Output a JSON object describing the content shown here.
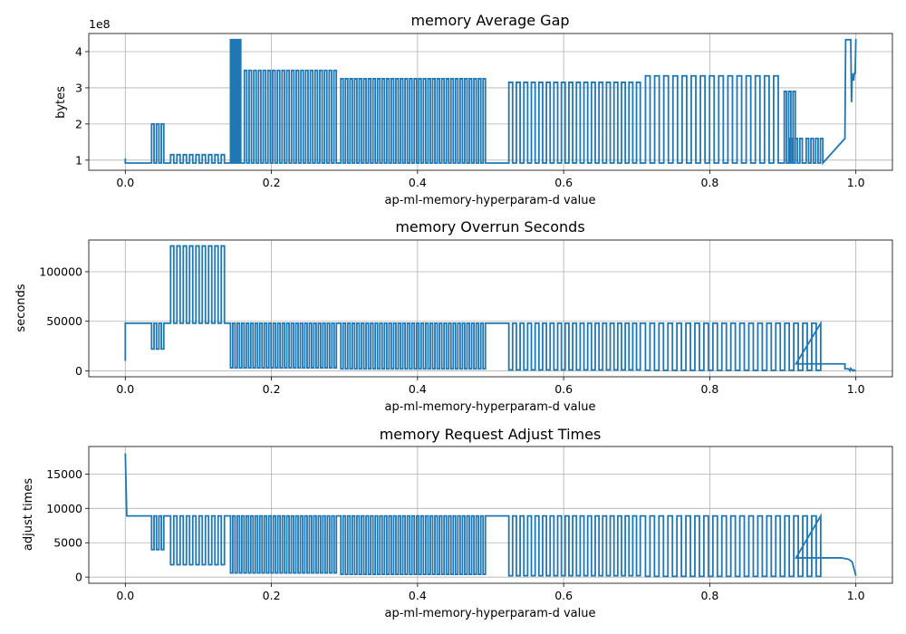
{
  "chart_data": [
    {
      "type": "line",
      "title": "memory Average Gap",
      "xlabel": "ap-ml-memory-hyperparam-d value",
      "ylabel": "bytes",
      "offset_text": "1e8",
      "xlim": [
        -0.05,
        1.05
      ],
      "ylim": [
        0.72,
        4.5
      ],
      "xticks": [
        0.0,
        0.2,
        0.4,
        0.6,
        0.8,
        1.0
      ],
      "xtick_labels": [
        "0.0",
        "0.2",
        "0.4",
        "0.6",
        "0.8",
        "1.0"
      ],
      "yticks": [
        1,
        2,
        3,
        4
      ],
      "ytick_labels": [
        "1",
        "2",
        "3",
        "4"
      ],
      "grid": true,
      "color": "#1f77b4",
      "baseline": 0.92,
      "start": [
        [
          0.0,
          1.05
        ],
        [
          0.0,
          0.92
        ]
      ],
      "end": [
        [
          0.985,
          1.6
        ],
        [
          0.986,
          4.33
        ],
        [
          0.993,
          4.33
        ],
        [
          0.994,
          2.6
        ],
        [
          0.995,
          3.4
        ],
        [
          0.997,
          3.2
        ],
        [
          0.998,
          3.4
        ],
        [
          0.999,
          3.4
        ],
        [
          1.0,
          4.35
        ]
      ],
      "segments": [
        {
          "x0": 0.036,
          "x1": 0.056,
          "h": 2.0,
          "n": 3
        },
        {
          "x0": 0.062,
          "x1": 0.14,
          "h": 1.15,
          "n": 9
        },
        {
          "x0": 0.144,
          "x1": 0.16,
          "h": 4.33,
          "n": 4
        },
        {
          "x0": 0.163,
          "x1": 0.292,
          "h": 3.48,
          "n": 20
        },
        {
          "x0": 0.295,
          "x1": 0.496,
          "h": 3.25,
          "n": 32
        },
        {
          "x0": 0.525,
          "x1": 0.71,
          "h": 3.15,
          "n": 18
        },
        {
          "x0": 0.712,
          "x1": 0.9,
          "h": 3.33,
          "n": 15
        },
        {
          "x0": 0.902,
          "x1": 0.92,
          "h": 2.9,
          "n": 3
        },
        {
          "x0": 0.91,
          "x1": 0.93,
          "h": 1.6,
          "n": 3
        },
        {
          "x0": 0.932,
          "x1": 0.958,
          "h": 1.6,
          "n": 4
        }
      ]
    },
    {
      "type": "line",
      "title": "memory Overrun Seconds",
      "xlabel": "ap-ml-memory-hyperparam-d value",
      "ylabel": "seconds",
      "xlim": [
        -0.05,
        1.05
      ],
      "ylim": [
        -6000,
        132000
      ],
      "xticks": [
        0.0,
        0.2,
        0.4,
        0.6,
        0.8,
        1.0
      ],
      "xtick_labels": [
        "0.0",
        "0.2",
        "0.4",
        "0.6",
        "0.8",
        "1.0"
      ],
      "yticks": [
        0,
        50000,
        100000
      ],
      "ytick_labels": [
        "0",
        "50000",
        "100000"
      ],
      "grid": true,
      "color": "#1f77b4",
      "baseline": 48000,
      "start": [
        [
          0.0,
          10000
        ],
        [
          0.0,
          48000
        ]
      ],
      "end": [
        [
          0.918,
          7000
        ],
        [
          0.985,
          7000
        ],
        [
          0.985,
          2000
        ],
        [
          0.99,
          2000
        ],
        [
          0.992,
          0
        ],
        [
          0.993,
          2500
        ],
        [
          0.996,
          0
        ],
        [
          0.997,
          1000
        ],
        [
          1.0,
          0
        ]
      ],
      "segments": [
        {
          "x0": 0.036,
          "x1": 0.056,
          "h": 22000,
          "n": 3
        },
        {
          "x0": 0.062,
          "x1": 0.14,
          "h": 126000,
          "n": 9
        },
        {
          "x0": 0.144,
          "x1": 0.292,
          "h": 3000,
          "n": 24
        },
        {
          "x0": 0.295,
          "x1": 0.496,
          "h": 2000,
          "n": 32
        },
        {
          "x0": 0.525,
          "x1": 0.71,
          "h": 1000,
          "n": 18
        },
        {
          "x0": 0.712,
          "x1": 0.958,
          "h": 500,
          "n": 20
        }
      ]
    },
    {
      "type": "line",
      "title": "memory Request Adjust Times",
      "xlabel": "ap-ml-memory-hyperparam-d value",
      "ylabel": "adjust times",
      "xlim": [
        -0.05,
        1.05
      ],
      "ylim": [
        -900,
        19000
      ],
      "xticks": [
        0.0,
        0.2,
        0.4,
        0.6,
        0.8,
        1.0
      ],
      "xtick_labels": [
        "0.0",
        "0.2",
        "0.4",
        "0.6",
        "0.8",
        "1.0"
      ],
      "yticks": [
        0,
        5000,
        10000,
        15000
      ],
      "ytick_labels": [
        "0",
        "5000",
        "10000",
        "15000"
      ],
      "grid": true,
      "color": "#1f77b4",
      "baseline": 8900,
      "start": [
        [
          0.0,
          18000
        ],
        [
          0.002,
          8900
        ]
      ],
      "end": [
        [
          0.918,
          2800
        ],
        [
          0.98,
          2800
        ],
        [
          0.99,
          2600
        ],
        [
          0.995,
          2200
        ],
        [
          1.0,
          200
        ]
      ],
      "segments": [
        {
          "x0": 0.036,
          "x1": 0.056,
          "h": 4000,
          "n": 3
        },
        {
          "x0": 0.062,
          "x1": 0.14,
          "h": 1800,
          "n": 9
        },
        {
          "x0": 0.144,
          "x1": 0.292,
          "h": 600,
          "n": 24
        },
        {
          "x0": 0.295,
          "x1": 0.496,
          "h": 400,
          "n": 32
        },
        {
          "x0": 0.525,
          "x1": 0.71,
          "h": 200,
          "n": 18
        },
        {
          "x0": 0.712,
          "x1": 0.958,
          "h": 100,
          "n": 20
        }
      ]
    }
  ]
}
